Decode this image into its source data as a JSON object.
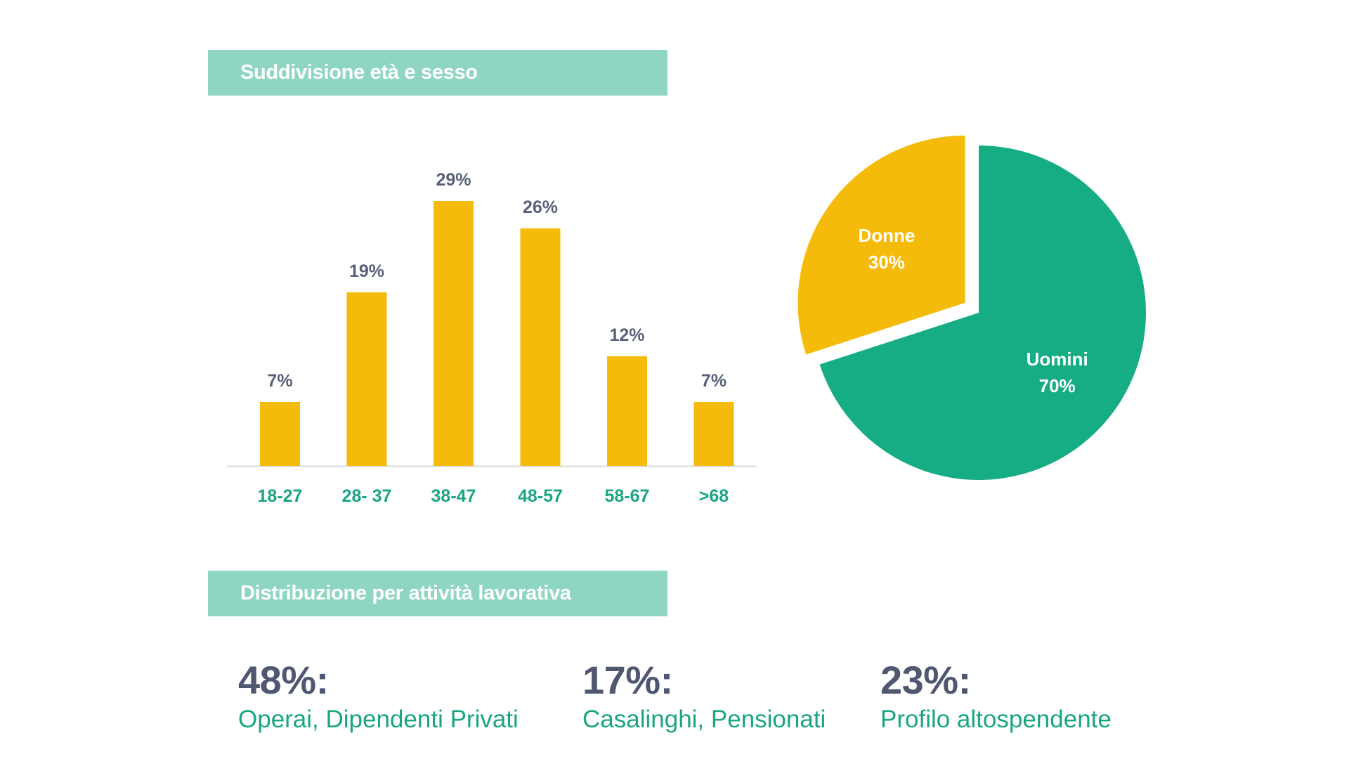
{
  "sections": [
    {
      "title": "Suddivisione età e sesso"
    },
    {
      "title": "Distribuzione per attività lavorativa"
    }
  ],
  "colors": {
    "header_bg": "#8fd6c2",
    "bar": "#f5bb0b",
    "axis": "#d9d9d9",
    "uomini": "#17ad84",
    "donne": "#f5bb0b"
  },
  "chart_data": [
    {
      "type": "bar",
      "categories": [
        "18-27",
        "28- 37",
        "38-47",
        "48-57",
        "58-67",
        ">68"
      ],
      "values": [
        7,
        19,
        29,
        26,
        12,
        7
      ],
      "value_labels": [
        "7%",
        "19%",
        "29%",
        "26%",
        "12%",
        "7%"
      ],
      "ylim": [
        0,
        30
      ],
      "grid": false
    },
    {
      "type": "pie",
      "slices": [
        {
          "name": "Uomini",
          "value": 70,
          "label": "70%",
          "exploded": false
        },
        {
          "name": "Donne",
          "value": 30,
          "label": "30%",
          "exploded": true
        }
      ]
    }
  ],
  "stats": [
    {
      "value": "48%:",
      "label": "Operai, Dipendenti Privati"
    },
    {
      "value": "17%:",
      "label": "Casalinghi, Pensionati"
    },
    {
      "value": "23%:",
      "label": "Profilo altospendente"
    }
  ]
}
